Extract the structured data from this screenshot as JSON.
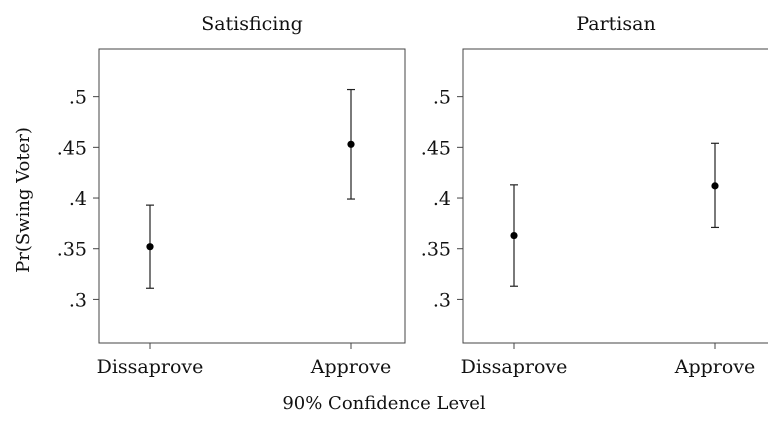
{
  "chart_data": {
    "type": "scatter",
    "ylabel": "Pr(Swing Voter)",
    "xlabel": "90% Confidence Level",
    "y_ticks": [
      0.3,
      0.35,
      0.4,
      0.45,
      0.5
    ],
    "y_tick_labels": [
      ".3",
      ".35",
      ".4",
      ".45",
      ".5"
    ],
    "ylim": [
      0.257,
      0.547
    ],
    "categories": [
      "Dissaprove",
      "Approve"
    ],
    "panels": [
      {
        "title": "Satisficing",
        "points": [
          {
            "category": "Dissaprove",
            "estimate": 0.352,
            "lower": 0.311,
            "upper": 0.393
          },
          {
            "category": "Approve",
            "estimate": 0.453,
            "lower": 0.399,
            "upper": 0.507
          }
        ]
      },
      {
        "title": "Partisan",
        "points": [
          {
            "category": "Dissaprove",
            "estimate": 0.363,
            "lower": 0.313,
            "upper": 0.413
          },
          {
            "category": "Approve",
            "estimate": 0.412,
            "lower": 0.371,
            "upper": 0.454
          }
        ]
      }
    ]
  }
}
